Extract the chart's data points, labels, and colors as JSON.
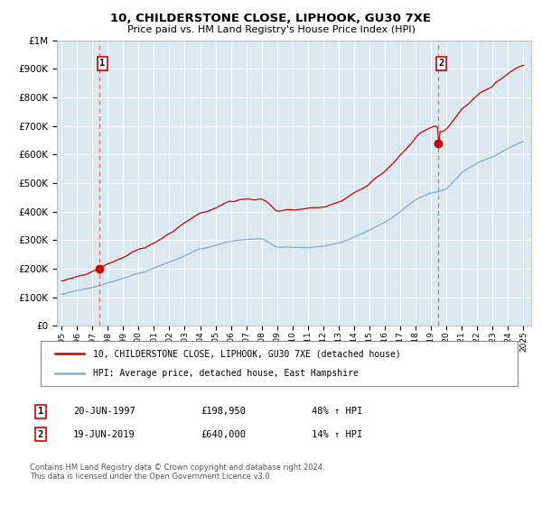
{
  "title": "10, CHILDERSTONE CLOSE, LIPHOOK, GU30 7XE",
  "subtitle": "Price paid vs. HM Land Registry's House Price Index (HPI)",
  "legend_line1": "10, CHILDERSTONE CLOSE, LIPHOOK, GU30 7XE (detached house)",
  "legend_line2": "HPI: Average price, detached house, East Hampshire",
  "sale1_date": "20-JUN-1997",
  "sale1_price": "£198,950",
  "sale1_hpi": "48% ↑ HPI",
  "sale1_x": 1997.46,
  "sale1_y": 198950,
  "sale2_date": "19-JUN-2019",
  "sale2_price": "£640,000",
  "sale2_hpi": "14% ↑ HPI",
  "sale2_x": 2019.46,
  "sale2_y": 640000,
  "footer": "Contains HM Land Registry data © Crown copyright and database right 2024.\nThis data is licensed under the Open Government Licence v3.0.",
  "hpi_color": "#7aaed4",
  "price_color": "#cc0000",
  "dashed_color": "#e87070",
  "bg_color": "#dce8f0",
  "grid_color": "#ffffff",
  "ylim": [
    0,
    1000000
  ],
  "xlim_start": 1994.7,
  "xlim_end": 2025.5,
  "yticks": [
    0,
    100000,
    200000,
    300000,
    400000,
    500000,
    600000,
    700000,
    800000,
    900000,
    1000000
  ],
  "ytick_labels": [
    "£0",
    "£100K",
    "£200K",
    "£300K",
    "£400K",
    "£500K",
    "£600K",
    "£700K",
    "£800K",
    "£900K",
    "£1M"
  ]
}
